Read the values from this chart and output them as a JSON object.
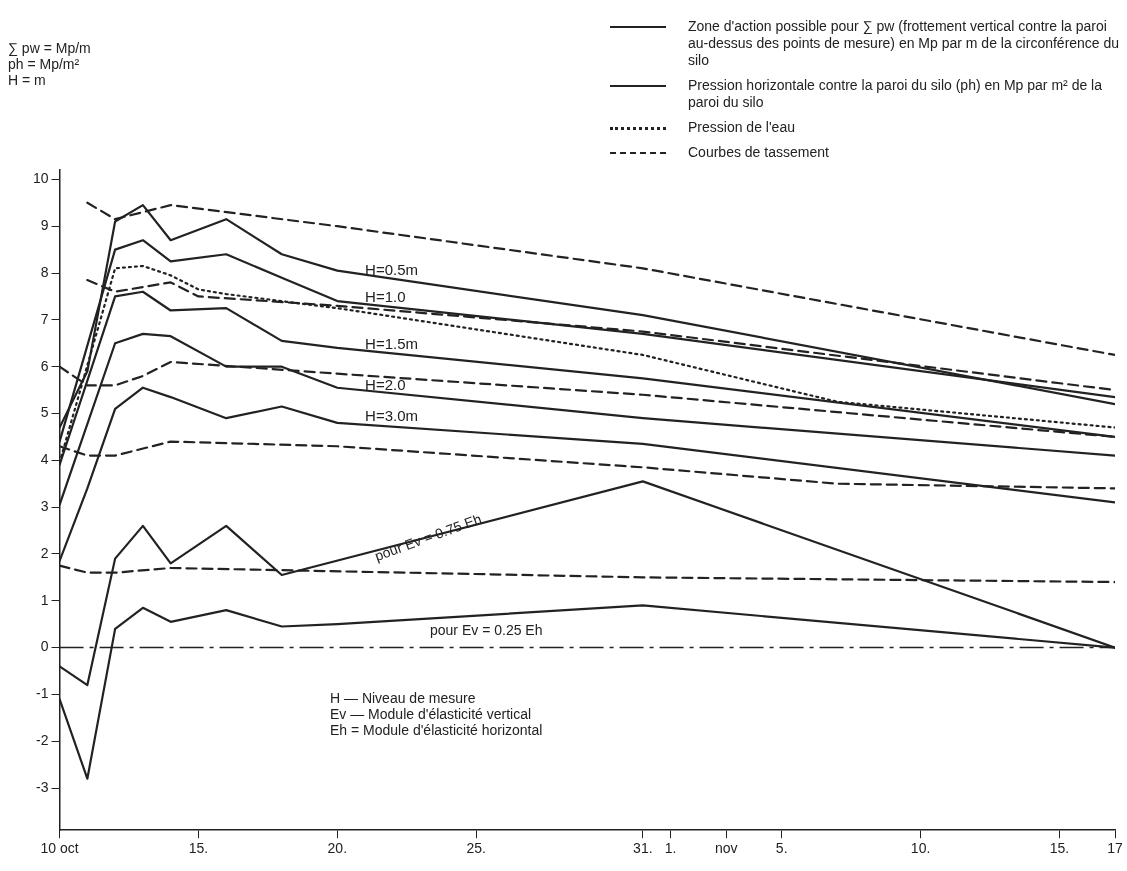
{
  "chart_data": {
    "type": "line",
    "xlim": [
      "--10-10",
      "--11-17"
    ],
    "xticks": [
      {
        "value": "--10-10",
        "label": "10 oct"
      },
      {
        "value": "--10-15",
        "label": "15."
      },
      {
        "value": "--10-20",
        "label": "20."
      },
      {
        "value": "--10-25",
        "label": "25."
      },
      {
        "value": "--10-31",
        "label": "31."
      },
      {
        "value": "--11-01",
        "label": "1."
      },
      {
        "value": "--11-03",
        "label": "nov"
      },
      {
        "value": "--11-05",
        "label": "5."
      },
      {
        "value": "--11-10",
        "label": "10."
      },
      {
        "value": "--11-15",
        "label": "15."
      },
      {
        "value": "--11-17",
        "label": "17"
      }
    ],
    "ylim": [
      -3.9,
      10.2
    ],
    "yticks": [
      -3,
      -2,
      -1,
      0,
      1,
      2,
      3,
      4,
      5,
      6,
      7,
      8,
      9,
      10
    ],
    "grid": false,
    "legend": "top right",
    "marker": "none",
    "series": [
      {
        "name": "Zone d'action possible pour ∑ pw (frottement vertical contre la paroi au-dessus des points de mesure) en Mp par m de la circonférence du silo",
        "color": "#222222",
        "line_style": "solid",
        "x": [
          "--10-10",
          "--10-11",
          "--10-12",
          "--10-13",
          "--10-14",
          "--10-16",
          "--10-18",
          "--10-31",
          "--11-17"
        ],
        "values": [
          -0.4,
          -0.8,
          1.9,
          2.6,
          1.8,
          2.6,
          1.55,
          3.55,
          0
        ]
      },
      {
        "color": "#222222",
        "line_style": "solid",
        "x": [
          "--10-10",
          "--10-11",
          "--10-12",
          "--10-13",
          "--10-14",
          "--10-16",
          "--10-18",
          "--10-20",
          "--10-31",
          "--11-17"
        ],
        "values": [
          -1.1,
          -2.8,
          0.4,
          0.85,
          0.55,
          0.8,
          0.45,
          0.5,
          0.9,
          0
        ]
      },
      {
        "name": "Pression horizontale contre la paroi du silo (ph) en Mp par m² de la paroi du silo",
        "color": "#222222",
        "line_style": "solid",
        "x": [
          "--10-10",
          "--10-11",
          "--10-12",
          "--10-13",
          "--10-14",
          "--10-16",
          "--10-18",
          "--10-20",
          "--10-31",
          "--11-17"
        ],
        "values": [
          4.7,
          5.9,
          9.1,
          9.45,
          8.7,
          9.15,
          8.4,
          8.05,
          7.1,
          5.2
        ]
      },
      {
        "color": "#222222",
        "line_style": "solid",
        "x": [
          "--10-10",
          "--10-12",
          "--10-13",
          "--10-14",
          "--10-16",
          "--10-18",
          "--10-20",
          "--10-31",
          "--11-17"
        ],
        "values": [
          4.4,
          8.5,
          8.7,
          8.25,
          8.4,
          7.9,
          7.4,
          6.7,
          5.35
        ]
      },
      {
        "color": "#222222",
        "line_style": "solid",
        "x": [
          "--10-10",
          "--10-12",
          "--10-13",
          "--10-14",
          "--10-16",
          "--10-18",
          "--10-20",
          "--10-31",
          "--11-17"
        ],
        "values": [
          3.9,
          7.5,
          7.6,
          7.2,
          7.25,
          6.55,
          6.4,
          5.75,
          4.5
        ]
      },
      {
        "color": "#222222",
        "line_style": "solid",
        "x": [
          "--10-10",
          "--10-12",
          "--10-13",
          "--10-14",
          "--10-16",
          "--10-18",
          "--10-20",
          "--10-31",
          "--11-17"
        ],
        "values": [
          3.05,
          6.5,
          6.7,
          6.65,
          6.0,
          6.0,
          5.55,
          4.9,
          4.1
        ]
      },
      {
        "color": "#222222",
        "line_style": "solid",
        "x": [
          "--10-10",
          "--10-11",
          "--10-12",
          "--10-13",
          "--10-14",
          "--10-16",
          "--10-18",
          "--10-20",
          "--10-31",
          "--11-17"
        ],
        "values": [
          1.85,
          3.4,
          5.1,
          5.55,
          5.35,
          4.9,
          5.15,
          4.8,
          4.35,
          3.1
        ]
      },
      {
        "name": "Pression de l'eau",
        "color": "#222222",
        "line_style": "dotted",
        "x": [
          "--10-10",
          "--10-12",
          "--10-13",
          "--10-14",
          "--10-15",
          "--10-16",
          "--10-20",
          "--10-31",
          "--11-07",
          "--11-17"
        ],
        "values": [
          3.95,
          8.1,
          8.15,
          7.95,
          7.65,
          7.55,
          7.25,
          6.25,
          5.25,
          4.7
        ]
      },
      {
        "name": "Courbes de tassement",
        "color": "#222222",
        "line_style": "dashed",
        "x": [
          "--10-11",
          "--10-12",
          "--10-14",
          "--10-20",
          "--10-31",
          "--11-17"
        ],
        "values": [
          9.5,
          9.15,
          9.45,
          9.0,
          8.1,
          6.25
        ]
      },
      {
        "color": "#222222",
        "line_style": "dashed",
        "x": [
          "--10-11",
          "--10-12",
          "--10-14",
          "--10-15",
          "--10-20",
          "--10-31",
          "--11-17"
        ],
        "values": [
          7.85,
          7.6,
          7.8,
          7.5,
          7.3,
          6.75,
          5.5
        ]
      },
      {
        "color": "#222222",
        "line_style": "dashed",
        "x": [
          "--10-10",
          "--10-11",
          "--10-12",
          "--10-13",
          "--10-14",
          "--10-20",
          "--10-31",
          "--11-17"
        ],
        "values": [
          6.0,
          5.6,
          5.6,
          5.8,
          6.1,
          5.85,
          5.4,
          4.5
        ]
      },
      {
        "color": "#222222",
        "line_style": "dashed",
        "x": [
          "--10-10",
          "--10-11",
          "--10-12",
          "--10-14",
          "--10-20",
          "--10-31",
          "--11-07",
          "--11-17"
        ],
        "values": [
          4.3,
          4.1,
          4.1,
          4.4,
          4.3,
          3.85,
          3.5,
          3.4
        ]
      },
      {
        "color": "#222222",
        "line_style": "dashed",
        "x": [
          "--10-10",
          "--10-11",
          "--10-12",
          "--10-14",
          "--10-31",
          "--11-17"
        ],
        "values": [
          1.75,
          1.6,
          1.6,
          1.7,
          1.5,
          1.4
        ]
      }
    ],
    "ref_lines": [
      {
        "axis": "y",
        "value": 0,
        "color": "#222222",
        "line_style": "dashed"
      }
    ],
    "annotations": [
      {
        "text": "H=0.5m",
        "x": "--10-21",
        "y": 7.95
      },
      {
        "text": "H=1.0",
        "x": "--10-21",
        "y": 7.38
      },
      {
        "text": "H=1.5m",
        "x": "--10-21",
        "y": 6.38
      },
      {
        "text": "H=2.0",
        "x": "--10-21",
        "y": 5.5
      },
      {
        "text": "H=3.0m",
        "x": "--10-21",
        "y": 4.85
      },
      "∑ pw = Mp/m",
      "ph = Mp/m²",
      "H = m",
      "pour Ev = 0.75 Eh",
      "pour Ev = 0.25 Eh",
      "H — Niveau de mesure",
      "Ev — Module d'élasticité vertical",
      "Eh = Module d'élasticité horizontal"
    ]
  }
}
